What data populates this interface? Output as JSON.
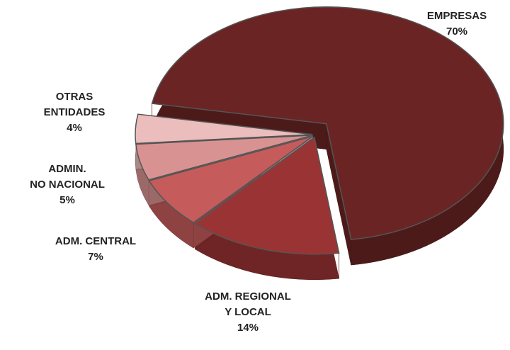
{
  "chart_data": {
    "type": "pie",
    "categories": [
      "EMPRESAS",
      "ADM. REGIONAL\nY LOCAL",
      "ADM. CENTRAL",
      "ADMIN.\nNO NACIONAL",
      "OTRAS\nENTIDADES"
    ],
    "values": [
      70,
      14,
      7,
      5,
      4
    ],
    "value_labels": [
      "70%",
      "14%",
      "7%",
      "5%",
      "4%"
    ],
    "colors": [
      "#6b2424",
      "#9a3434",
      "#c55b5b",
      "#d99292",
      "#ebbdbd"
    ]
  }
}
